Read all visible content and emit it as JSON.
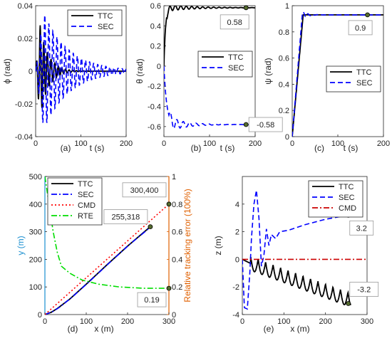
{
  "chart_data": [
    {
      "id": "a",
      "type": "line",
      "caption": "(a)",
      "xlabel": "t (s)",
      "ylabel": "ϕ (rad)",
      "xlim": [
        0,
        200
      ],
      "ylim": [
        -0.04,
        0.04
      ],
      "xticks": [
        0,
        100,
        200
      ],
      "yticks": [
        -0.04,
        -0.02,
        0,
        0.02,
        0.04
      ],
      "ytick_labels": [
        "-0.04",
        "-0.02",
        "0",
        "0.02",
        "0.04"
      ],
      "legend": {
        "position": "top-right",
        "entries": [
          "TTC",
          "SEC"
        ]
      },
      "series": [
        {
          "name": "TTC",
          "style": "solid",
          "color": "#000000",
          "model": "damped",
          "amp": 0.028,
          "period": 8,
          "decay": 18,
          "peak_t": 10
        },
        {
          "name": "SEC",
          "style": "dashed",
          "color": "#0000ff",
          "model": "damped",
          "amp": 0.036,
          "period": 9,
          "decay": 55,
          "peak_t": 18
        }
      ]
    },
    {
      "id": "b",
      "type": "line",
      "caption": "(b)",
      "xlabel": "t (s)",
      "ylabel": "θ (rad)",
      "xlim": [
        0,
        200
      ],
      "ylim": [
        -0.7,
        0.6
      ],
      "xticks": [
        0,
        100,
        200
      ],
      "yticks": [
        -0.6,
        -0.4,
        -0.2,
        0,
        0.2,
        0.4,
        0.6
      ],
      "ytick_labels": [
        "-0.6",
        "-0.4",
        "-0.2",
        "0",
        "0.2",
        "0.4",
        "0.6"
      ],
      "legend": {
        "position": "right",
        "entries": [
          "TTC",
          "SEC"
        ]
      },
      "series": [
        {
          "name": "TTC",
          "style": "solid",
          "color": "#000000",
          "model": "settle",
          "final": 0.58,
          "rise": 10,
          "osc": 0.03,
          "period": 12,
          "decay": 60
        },
        {
          "name": "SEC",
          "style": "dashed",
          "color": "#0000ff",
          "model": "settle",
          "final": -0.58,
          "rise": 18,
          "osc": 0.06,
          "period": 14,
          "decay": 35
        }
      ],
      "annotations": [
        {
          "label": "0.58",
          "x": 180,
          "y": 0.58
        },
        {
          "label": "-0.58",
          "x": 180,
          "y": -0.58
        }
      ]
    },
    {
      "id": "c",
      "type": "line",
      "caption": "(c)",
      "xlabel": "t (s)",
      "ylabel": "ψ (rad)",
      "xlim": [
        0,
        200
      ],
      "ylim": [
        0,
        1
      ],
      "xticks": [
        0,
        100,
        200
      ],
      "yticks": [
        0,
        0.2,
        0.4,
        0.6,
        0.8,
        1
      ],
      "ytick_labels": [
        "0",
        "0.2",
        "0.4",
        "0.6",
        "0.8",
        "1"
      ],
      "legend": {
        "position": "bottom-right",
        "entries": [
          "TTC",
          "SEC"
        ]
      },
      "series": [
        {
          "name": "TTC",
          "style": "solid",
          "color": "#000000",
          "model": "ramp",
          "final": 0.93,
          "rise": 24,
          "osc": 0.0,
          "period": 10,
          "decay": 10
        },
        {
          "name": "SEC",
          "style": "dashed",
          "color": "#0000ff",
          "model": "ramp",
          "final": 0.93,
          "rise": 22,
          "osc": 0.025,
          "period": 10,
          "decay": 12
        }
      ],
      "annotations": [
        {
          "label": "0.9",
          "x": 165,
          "y": 0.93
        }
      ]
    },
    {
      "id": "d",
      "type": "line",
      "caption": "(d)",
      "xlabel": "x (m)",
      "ylabel": "y (m)",
      "y2label": "Relative tracking error (100%)",
      "xlim": [
        0,
        300
      ],
      "ylim": [
        0,
        500
      ],
      "y2lim": [
        0,
        1
      ],
      "xticks": [
        0,
        100,
        200,
        300
      ],
      "yticks": [
        0,
        100,
        200,
        300,
        400,
        500
      ],
      "ytick_labels": [
        "0",
        "100",
        "200",
        "300",
        "400",
        "500"
      ],
      "y2ticks": [
        0,
        0.2,
        0.4,
        0.6,
        0.8,
        1
      ],
      "y2tick_labels": [
        "0",
        "0.2",
        "0.4",
        "0.6",
        "0.8",
        "1"
      ],
      "legend": {
        "position": "top-left",
        "entries": [
          "TTC",
          "SEC",
          "CMD",
          "RTE"
        ]
      },
      "series": [
        {
          "name": "TTC",
          "style": "solid",
          "color": "#000000",
          "axis": "left",
          "points": [
            [
              0,
              0
            ],
            [
              15,
              8
            ],
            [
              30,
              22
            ],
            [
              60,
              56
            ],
            [
              100,
              110
            ],
            [
              150,
              180
            ],
            [
              200,
              248
            ],
            [
              255,
              318
            ]
          ]
        },
        {
          "name": "SEC",
          "style": "dashdot",
          "color": "#0000ff",
          "axis": "left",
          "points": [
            [
              0,
              0
            ],
            [
              18,
              10
            ],
            [
              35,
              26
            ],
            [
              65,
              62
            ],
            [
              105,
              116
            ],
            [
              155,
              186
            ],
            [
              205,
              254
            ],
            [
              255,
              316
            ]
          ]
        },
        {
          "name": "CMD",
          "style": "dotted",
          "color": "#ff0000",
          "axis": "left",
          "points": [
            [
              0,
              0
            ],
            [
              300,
              400
            ]
          ]
        },
        {
          "name": "RTE",
          "style": "dashdot",
          "color": "#00dd00",
          "axis": "right",
          "points": [
            [
              0,
              1.0
            ],
            [
              5,
              0.9
            ],
            [
              10,
              0.8
            ],
            [
              20,
              0.6
            ],
            [
              30,
              0.45
            ],
            [
              40,
              0.35
            ],
            [
              60,
              0.3
            ],
            [
              90,
              0.25
            ],
            [
              130,
              0.22
            ],
            [
              180,
              0.2
            ],
            [
              240,
              0.19
            ],
            [
              300,
              0.19
            ]
          ]
        }
      ],
      "annotations": [
        {
          "label": "300,400",
          "x": 300,
          "y": 400,
          "axis": "left"
        },
        {
          "label": "255,318",
          "x": 255,
          "y": 318,
          "axis": "left"
        },
        {
          "label": "0.19",
          "x": 300,
          "y": 0.19,
          "axis": "right"
        }
      ]
    },
    {
      "id": "e",
      "type": "line",
      "caption": "(e)",
      "xlabel": "x (m)",
      "ylabel": "z (m)",
      "xlim": [
        0,
        300
      ],
      "ylim": [
        -4,
        6
      ],
      "xticks": [
        0,
        100,
        200,
        300
      ],
      "yticks": [
        -4,
        -2,
        0,
        2,
        4
      ],
      "ytick_labels": [
        "-4",
        "-2",
        "0",
        "2",
        "4"
      ],
      "legend": {
        "position": "top-right",
        "entries": [
          "TTC",
          "SEC",
          "CMD"
        ]
      },
      "series": [
        {
          "name": "TTC",
          "style": "solid",
          "color": "#000000",
          "model": "zwave",
          "start": 0,
          "final": -3.2,
          "amp": 0.5,
          "period": 18,
          "x0": 20,
          "x1": 260
        },
        {
          "name": "SEC",
          "style": "dashed",
          "color": "#0000ff",
          "points": [
            [
              0,
              0
            ],
            [
              5,
              -3.5
            ],
            [
              12,
              -3.6
            ],
            [
              18,
              -1
            ],
            [
              22,
              1.5
            ],
            [
              28,
              4
            ],
            [
              34,
              5
            ],
            [
              40,
              3
            ],
            [
              46,
              -0.5
            ],
            [
              52,
              0.3
            ],
            [
              58,
              2.2
            ],
            [
              64,
              1.0
            ],
            [
              70,
              1.8
            ],
            [
              80,
              1.5
            ],
            [
              90,
              2
            ],
            [
              110,
              2.1
            ],
            [
              150,
              2.5
            ],
            [
              200,
              2.9
            ],
            [
              255,
              3.2
            ]
          ]
        },
        {
          "name": "CMD",
          "style": "dashdot",
          "color": "#cc0000",
          "points": [
            [
              0,
              0
            ],
            [
              300,
              0
            ]
          ]
        }
      ],
      "annotations": [
        {
          "label": "3.2",
          "x": 255,
          "y": 3.2
        },
        {
          "label": "-3.2",
          "x": 255,
          "y": -3.2
        }
      ]
    }
  ]
}
